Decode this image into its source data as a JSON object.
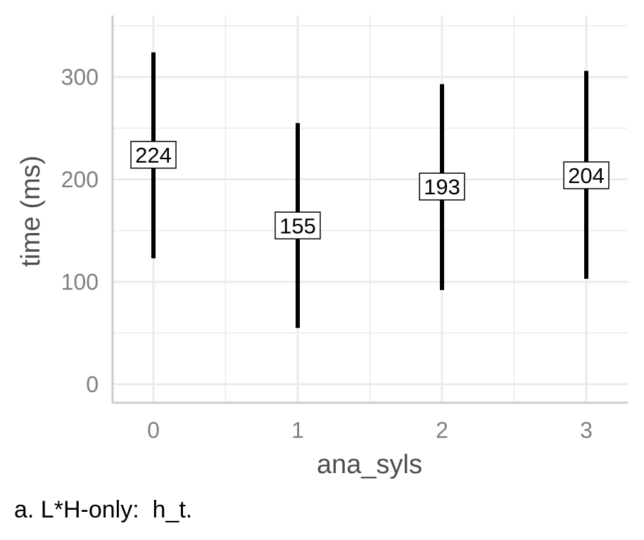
{
  "chart_data": {
    "type": "errorbar",
    "xlabel": "ana_syls",
    "ylabel": "time (ms)",
    "caption": "a. L*H-only:  h_t.",
    "categories": [
      "0",
      "1",
      "2",
      "3"
    ],
    "series": [
      {
        "values": [
          224,
          155,
          193,
          204
        ],
        "lower": [
          123,
          55,
          92,
          103
        ],
        "upper": [
          324,
          255,
          293,
          306
        ],
        "data_labels": [
          "224",
          "155",
          "193",
          "204"
        ]
      }
    ],
    "y_ticks": [
      0,
      100,
      200,
      300
    ],
    "y_tick_labels": [
      "0",
      "100",
      "200",
      "300"
    ],
    "x_tick_labels": [
      "0",
      "1",
      "2",
      "3"
    ],
    "ylim": [
      -18,
      360
    ],
    "grid": true,
    "colors": {
      "bar": "#000000",
      "grid": "#ebebeb",
      "axis": "#cccccc",
      "tick_text": "#7f7f7f",
      "title_text": "#4d4d4d"
    }
  }
}
